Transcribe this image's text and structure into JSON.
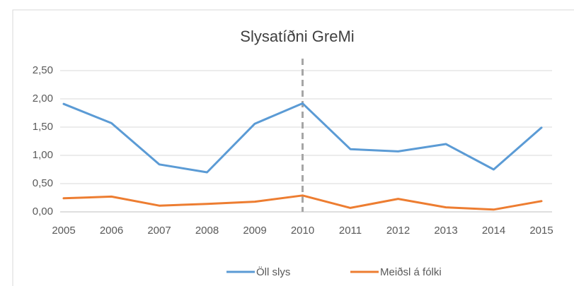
{
  "chart_data": {
    "type": "line",
    "title": "Slysatíðni GreMi",
    "categories": [
      "2005",
      "2006",
      "2007",
      "2008",
      "2009",
      "2010",
      "2011",
      "2012",
      "2013",
      "2014",
      "2015"
    ],
    "series": [
      {
        "name": "Öll slys",
        "color": "#5b9bd5",
        "values": [
          1.91,
          1.57,
          0.84,
          0.7,
          1.56,
          1.92,
          1.11,
          1.07,
          1.2,
          0.75,
          1.49
        ]
      },
      {
        "name": "Meiðsl á fólki",
        "color": "#ed7d31",
        "values": [
          0.24,
          0.27,
          0.11,
          0.14,
          0.18,
          0.29,
          0.07,
          0.23,
          0.08,
          0.04,
          0.19
        ]
      }
    ],
    "ylim": [
      0,
      2.5
    ],
    "yticks": [
      {
        "value": 0,
        "label": "0,00"
      },
      {
        "value": 0.5,
        "label": "0,50"
      },
      {
        "value": 1,
        "label": "1,00"
      },
      {
        "value": 1.5,
        "label": "1,50"
      },
      {
        "value": 2,
        "label": "2,00"
      },
      {
        "value": 2.5,
        "label": "2,50"
      }
    ],
    "grid": true,
    "legend": "bottom",
    "reference_line_at": "2010"
  }
}
